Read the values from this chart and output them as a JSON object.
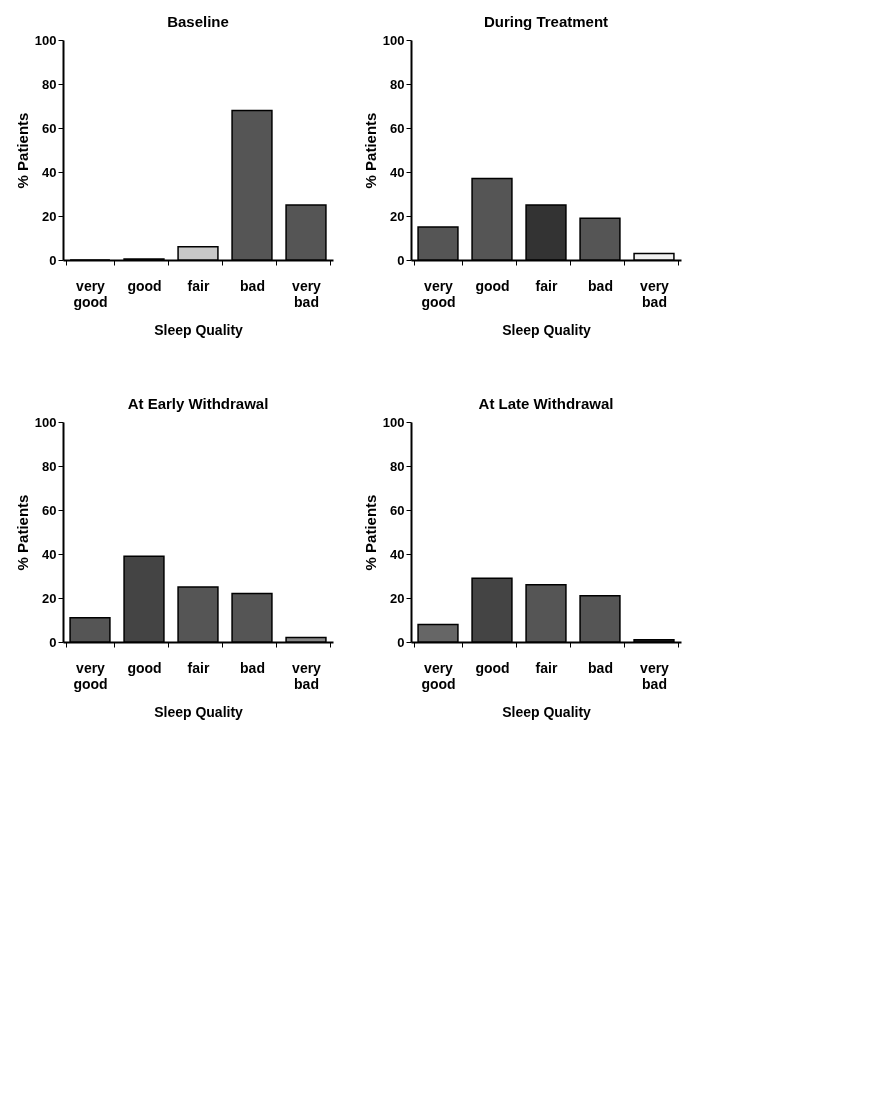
{
  "chart_data": [
    {
      "type": "bar",
      "title": "Baseline",
      "xlabel": "Sleep Quality",
      "ylabel": "% Patients",
      "categories": [
        "very good",
        "good",
        "fair",
        "bad",
        "very bad"
      ],
      "values": [
        0,
        0.5,
        6,
        68,
        25
      ],
      "colors": [
        "#000000",
        "#555555",
        "#c8c8c8",
        "#555555",
        "#555555"
      ],
      "ylim": [
        0,
        100
      ],
      "yticks": [
        0,
        20,
        40,
        60,
        80,
        100
      ]
    },
    {
      "type": "bar",
      "title": "During Treatment",
      "xlabel": "Sleep Quality",
      "ylabel": "% Patients",
      "categories": [
        "very good",
        "good",
        "fair",
        "bad",
        "very bad"
      ],
      "values": [
        15,
        37,
        25,
        19,
        3
      ],
      "colors": [
        "#555555",
        "#555555",
        "#333333",
        "#555555",
        "#f0f0f0"
      ],
      "ylim": [
        0,
        100
      ],
      "yticks": [
        0,
        20,
        40,
        60,
        80,
        100
      ]
    },
    {
      "type": "bar",
      "title": "At Early Withdrawal",
      "xlabel": "Sleep Quality",
      "ylabel": "% Patients",
      "categories": [
        "very good",
        "good",
        "fair",
        "bad",
        "very bad"
      ],
      "values": [
        11,
        39,
        25,
        22,
        2
      ],
      "colors": [
        "#555555",
        "#444444",
        "#555555",
        "#555555",
        "#888888"
      ],
      "ylim": [
        0,
        100
      ],
      "yticks": [
        0,
        20,
        40,
        60,
        80,
        100
      ]
    },
    {
      "type": "bar",
      "title": "At Late Withdrawal",
      "xlabel": "Sleep Quality",
      "ylabel": "% Patients",
      "categories": [
        "very good",
        "good",
        "fair",
        "bad",
        "very bad"
      ],
      "values": [
        8,
        29,
        26,
        21,
        1
      ],
      "colors": [
        "#666666",
        "#444444",
        "#555555",
        "#555555",
        "#222222"
      ],
      "ylim": [
        0,
        100
      ],
      "yticks": [
        0,
        20,
        40,
        60,
        80,
        100
      ]
    }
  ]
}
